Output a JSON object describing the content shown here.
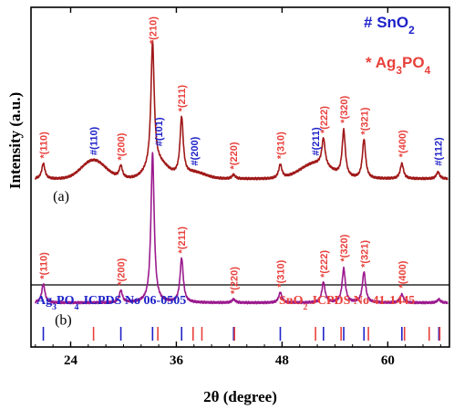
{
  "chart_data": {
    "type": "line",
    "xlabel": "2θ (degree)",
    "ylabel": "Intensity (a.u.)",
    "xlim": [
      19.5,
      67
    ],
    "xticks": [
      24,
      36,
      48,
      60
    ],
    "y_ticks_shown": false,
    "grid": false,
    "legend": {
      "placement": "top-right",
      "entries": [
        {
          "symbol": "#",
          "name": "SnO",
          "sub": "2",
          "color": "#1e22c8"
        },
        {
          "symbol": "*",
          "name": "Ag",
          "sub": "3",
          "name2": "PO",
          "sub2": "4",
          "color": "#e8413c"
        }
      ]
    },
    "series": [
      {
        "name": "(a)",
        "color": "#a01818",
        "baseline": 0.505,
        "peaks": [
          {
            "x": 20.9,
            "h": 0.045
          },
          {
            "x": 29.7,
            "h": 0.035
          },
          {
            "x": 33.3,
            "h": 0.365
          },
          {
            "x": 36.6,
            "h": 0.17
          },
          {
            "x": 42.5,
            "h": 0.012
          },
          {
            "x": 47.8,
            "h": 0.04
          },
          {
            "x": 52.7,
            "h": 0.08
          },
          {
            "x": 55.0,
            "h": 0.135
          },
          {
            "x": 57.3,
            "h": 0.115
          },
          {
            "x": 61.6,
            "h": 0.045
          },
          {
            "x": 65.7,
            "h": 0.02
          }
        ],
        "broad": [
          {
            "x": 26.6,
            "h": 0.055,
            "w": 1.9
          },
          {
            "x": 33.9,
            "h": 0.045,
            "w": 1.6
          },
          {
            "x": 38.0,
            "h": 0.018,
            "w": 1.8
          },
          {
            "x": 51.8,
            "h": 0.045,
            "w": 2.4
          }
        ]
      },
      {
        "name": "(b)",
        "color": "#9b1a8e",
        "baseline": 0.87,
        "peaks": [
          {
            "x": 20.9,
            "h": 0.055
          },
          {
            "x": 29.7,
            "h": 0.035
          },
          {
            "x": 33.3,
            "h": 0.44
          },
          {
            "x": 36.6,
            "h": 0.13
          },
          {
            "x": 42.5,
            "h": 0.01
          },
          {
            "x": 47.8,
            "h": 0.03
          },
          {
            "x": 52.7,
            "h": 0.06
          },
          {
            "x": 55.0,
            "h": 0.1
          },
          {
            "x": 57.3,
            "h": 0.09
          },
          {
            "x": 61.6,
            "h": 0.025
          },
          {
            "x": 65.8,
            "h": 0.01
          }
        ],
        "broad": []
      }
    ],
    "annotations": [
      {
        "text": "*(110)",
        "x": 20.9,
        "series": 0,
        "color": "#e8413c"
      },
      {
        "text": "#(110)",
        "x": 26.6,
        "series": 0,
        "color": "#1e22c8"
      },
      {
        "text": "*(200)",
        "x": 29.7,
        "series": 0,
        "color": "#e8413c"
      },
      {
        "text": "*(210)",
        "x": 33.3,
        "series": 0,
        "color": "#e8413c"
      },
      {
        "text": "#(101)",
        "x": 34.0,
        "series": 0,
        "color": "#1e22c8"
      },
      {
        "text": "*(211)",
        "x": 36.6,
        "series": 0,
        "color": "#e8413c"
      },
      {
        "text": "#(200)",
        "x": 38.0,
        "series": 0,
        "color": "#1e22c8"
      },
      {
        "text": "*(220)",
        "x": 42.5,
        "series": 0,
        "color": "#e8413c"
      },
      {
        "text": "*(310)",
        "x": 47.8,
        "series": 0,
        "color": "#e8413c"
      },
      {
        "text": "#(211)",
        "x": 51.8,
        "series": 0,
        "color": "#1e22c8"
      },
      {
        "text": "*(222)",
        "x": 52.7,
        "series": 0,
        "color": "#e8413c"
      },
      {
        "text": "*(320)",
        "x": 55.0,
        "series": 0,
        "color": "#e8413c"
      },
      {
        "text": "*(321)",
        "x": 57.3,
        "series": 0,
        "color": "#e8413c"
      },
      {
        "text": "*(400)",
        "x": 61.6,
        "series": 0,
        "color": "#e8413c"
      },
      {
        "text": "#(112)",
        "x": 65.7,
        "series": 0,
        "color": "#1e22c8"
      },
      {
        "text": "*(110)",
        "x": 20.9,
        "series": 1,
        "color": "#e8413c"
      },
      {
        "text": "*(200)",
        "x": 29.7,
        "series": 1,
        "color": "#e8413c"
      },
      {
        "text": "*(211)",
        "x": 36.6,
        "series": 1,
        "color": "#e8413c"
      },
      {
        "text": "*(220)",
        "x": 42.5,
        "series": 1,
        "color": "#e8413c"
      },
      {
        "text": "*(310)",
        "x": 47.8,
        "series": 1,
        "color": "#e8413c"
      },
      {
        "text": "*(222)",
        "x": 52.7,
        "series": 1,
        "color": "#e8413c"
      },
      {
        "text": "*(320)",
        "x": 55.0,
        "series": 1,
        "color": "#e8413c"
      },
      {
        "text": "*(321)",
        "x": 57.3,
        "series": 1,
        "color": "#e8413c"
      },
      {
        "text": "*(400)",
        "x": 61.6,
        "series": 1,
        "color": "#e8413c"
      }
    ],
    "series_labels": [
      {
        "text": "(a)",
        "x": 22.0,
        "series": 0
      },
      {
        "text": "(b)",
        "x": 22.2,
        "series": 1
      }
    ],
    "reference_labels": [
      {
        "text": "Ag",
        "sub": "3",
        "text2": "PO",
        "sub2": "4",
        "text3": " JCPDS No 06-0505",
        "color": "#1e22c8"
      },
      {
        "text": "SnO",
        "sub": "2",
        "text3": " JCPDS No 41-1445",
        "color": "#e8413c"
      }
    ],
    "reference_lines": {
      "blue_color": "#1e22c8",
      "red_color": "#e8413c",
      "blue": [
        20.9,
        29.7,
        33.3,
        36.6,
        42.5,
        47.8,
        52.7,
        55.0,
        57.3,
        61.6,
        65.8
      ],
      "red": [
        26.6,
        33.9,
        37.9,
        38.9,
        42.6,
        51.8,
        54.7,
        57.8,
        61.9,
        64.7,
        65.9
      ]
    }
  }
}
